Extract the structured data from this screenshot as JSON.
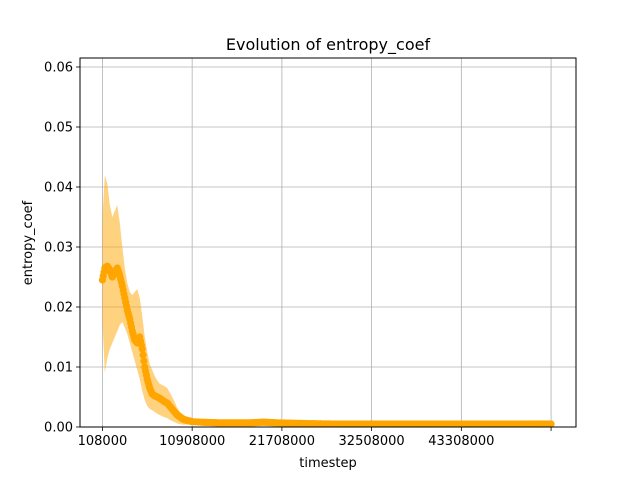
{
  "chart_data": {
    "type": "line",
    "title": "Evolution of entropy_coef",
    "xlabel": "timestep",
    "ylabel": "entropy_coef",
    "xlim": [
      -2592000,
      57108000
    ],
    "ylim": [
      0,
      0.0615
    ],
    "x_ticks": [
      108000,
      10908000,
      21708000,
      32508000,
      43308000,
      54108000
    ],
    "x_tick_labels": [
      "108000",
      "10908000",
      "21708000",
      "32508000",
      "43308000",
      ""
    ],
    "y_ticks": [
      0.0,
      0.01,
      0.02,
      0.03,
      0.04,
      0.05,
      0.06
    ],
    "y_tick_labels": [
      "0.00",
      "0.01",
      "0.02",
      "0.03",
      "0.04",
      "0.05",
      "0.06"
    ],
    "grid": true,
    "colors": {
      "series": "#ffa500",
      "band": "#ffa500"
    },
    "series": [
      {
        "x": [
          108000,
          400000,
          700000,
          1000000,
          1300000,
          1600000,
          1900000,
          2200000,
          2500000,
          2800000,
          3100000,
          3400000,
          3700000,
          4000000,
          4300000,
          4600000,
          4900000,
          5200000,
          5500000,
          5800000,
          6100000,
          6400000,
          6700000,
          7000000,
          7300000,
          7600000,
          7900000,
          8200000,
          8500000,
          8800000,
          9100000,
          9400000,
          9700000,
          10000000,
          10300000,
          10600000,
          10908000,
          12000000,
          14000000,
          16000000,
          18000000,
          19500000,
          21000000,
          24000000,
          28000000,
          32000000,
          36000000,
          40000000,
          44000000,
          48000000,
          52000000,
          54108000
        ],
        "y": [
          0.0245,
          0.0265,
          0.0268,
          0.0262,
          0.025,
          0.0258,
          0.0265,
          0.0252,
          0.0235,
          0.0215,
          0.0195,
          0.018,
          0.016,
          0.0145,
          0.014,
          0.015,
          0.013,
          0.01,
          0.008,
          0.0065,
          0.0055,
          0.0052,
          0.005,
          0.0048,
          0.0045,
          0.0042,
          0.004,
          0.0035,
          0.003,
          0.0025,
          0.002,
          0.0017,
          0.0014,
          0.0012,
          0.0011,
          0.001,
          0.0009,
          0.0008,
          0.0007,
          0.0007,
          0.0007,
          0.0008,
          0.0007,
          0.0006,
          0.0005,
          0.0005,
          0.0005,
          0.0005,
          0.0005,
          0.0005,
          0.0005,
          0.0005
        ],
        "lower": [
          0.0175,
          0.009,
          0.0115,
          0.013,
          0.014,
          0.015,
          0.016,
          0.017,
          0.0175,
          0.0165,
          0.0155,
          0.014,
          0.0125,
          0.011,
          0.0095,
          0.008,
          0.006,
          0.0045,
          0.0035,
          0.003,
          0.0028,
          0.0025,
          0.0022,
          0.002,
          0.0018,
          0.0016,
          0.0015,
          0.0012,
          0.001,
          0.0008,
          0.0006,
          0.0005,
          0.0004,
          0.0004,
          0.0004,
          0.0004,
          0.0004,
          0.0004,
          0.0004,
          0.0004,
          0.0004,
          0.0004,
          0.0004,
          0.0003,
          0.0003,
          0.0003,
          0.0003,
          0.0003,
          0.0003,
          0.0003,
          0.0003,
          0.0003
        ],
        "upper": [
          0.035,
          0.042,
          0.0405,
          0.037,
          0.035,
          0.036,
          0.037,
          0.034,
          0.03,
          0.0265,
          0.024,
          0.0225,
          0.022,
          0.0225,
          0.023,
          0.0215,
          0.0185,
          0.015,
          0.0125,
          0.0105,
          0.0095,
          0.0085,
          0.0078,
          0.0072,
          0.007,
          0.0068,
          0.0065,
          0.0058,
          0.005,
          0.0042,
          0.0032,
          0.0026,
          0.0022,
          0.0019,
          0.0017,
          0.0015,
          0.0014,
          0.0012,
          0.0011,
          0.0011,
          0.0011,
          0.0012,
          0.0011,
          0.0009,
          0.0008,
          0.0008,
          0.0008,
          0.0008,
          0.0008,
          0.0008,
          0.0008,
          0.0008
        ]
      }
    ]
  }
}
